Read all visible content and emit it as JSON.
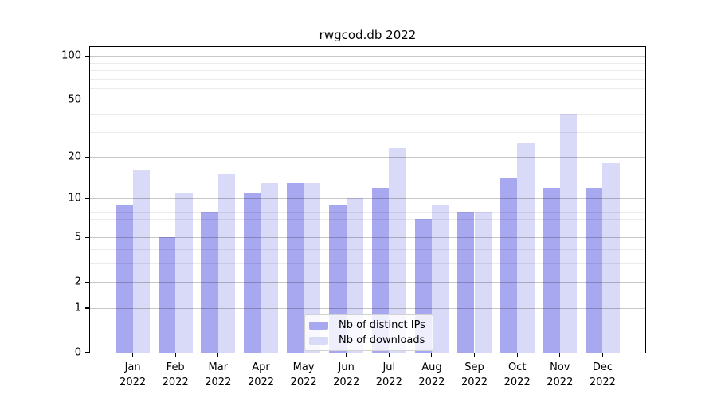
{
  "chart_data": {
    "type": "bar",
    "title": "rwgcod.db 2022",
    "x_labels": [
      {
        "month": "Jan",
        "year": "2022"
      },
      {
        "month": "Feb",
        "year": "2022"
      },
      {
        "month": "Mar",
        "year": "2022"
      },
      {
        "month": "Apr",
        "year": "2022"
      },
      {
        "month": "May",
        "year": "2022"
      },
      {
        "month": "Jun",
        "year": "2022"
      },
      {
        "month": "Jul",
        "year": "2022"
      },
      {
        "month": "Aug",
        "year": "2022"
      },
      {
        "month": "Sep",
        "year": "2022"
      },
      {
        "month": "Oct",
        "year": "2022"
      },
      {
        "month": "Nov",
        "year": "2022"
      },
      {
        "month": "Dec",
        "year": "2022"
      }
    ],
    "series": [
      {
        "name": "Nb of distinct IPs",
        "color": "#a8a8f0",
        "values": [
          9,
          5,
          8,
          11,
          13,
          9,
          12,
          7,
          8,
          14,
          12,
          12
        ]
      },
      {
        "name": "Nb of downloads",
        "color": "#d9d9f8",
        "values": [
          16,
          11,
          15,
          13,
          13,
          10,
          23,
          9,
          8,
          25,
          40,
          18
        ]
      }
    ],
    "yscale": "log1p",
    "ylim": [
      0,
      115
    ],
    "y_major_ticks": [
      100,
      50,
      20,
      10,
      5,
      2,
      1,
      0
    ],
    "y_minor_ticks": [
      3,
      4,
      6,
      7,
      8,
      9,
      30,
      40,
      60,
      70,
      80,
      90
    ],
    "grid": true,
    "legend_position": "lower center",
    "colors": {
      "axis": "#000000",
      "text": "#000000",
      "legend_border": "#d2d2d2"
    }
  }
}
